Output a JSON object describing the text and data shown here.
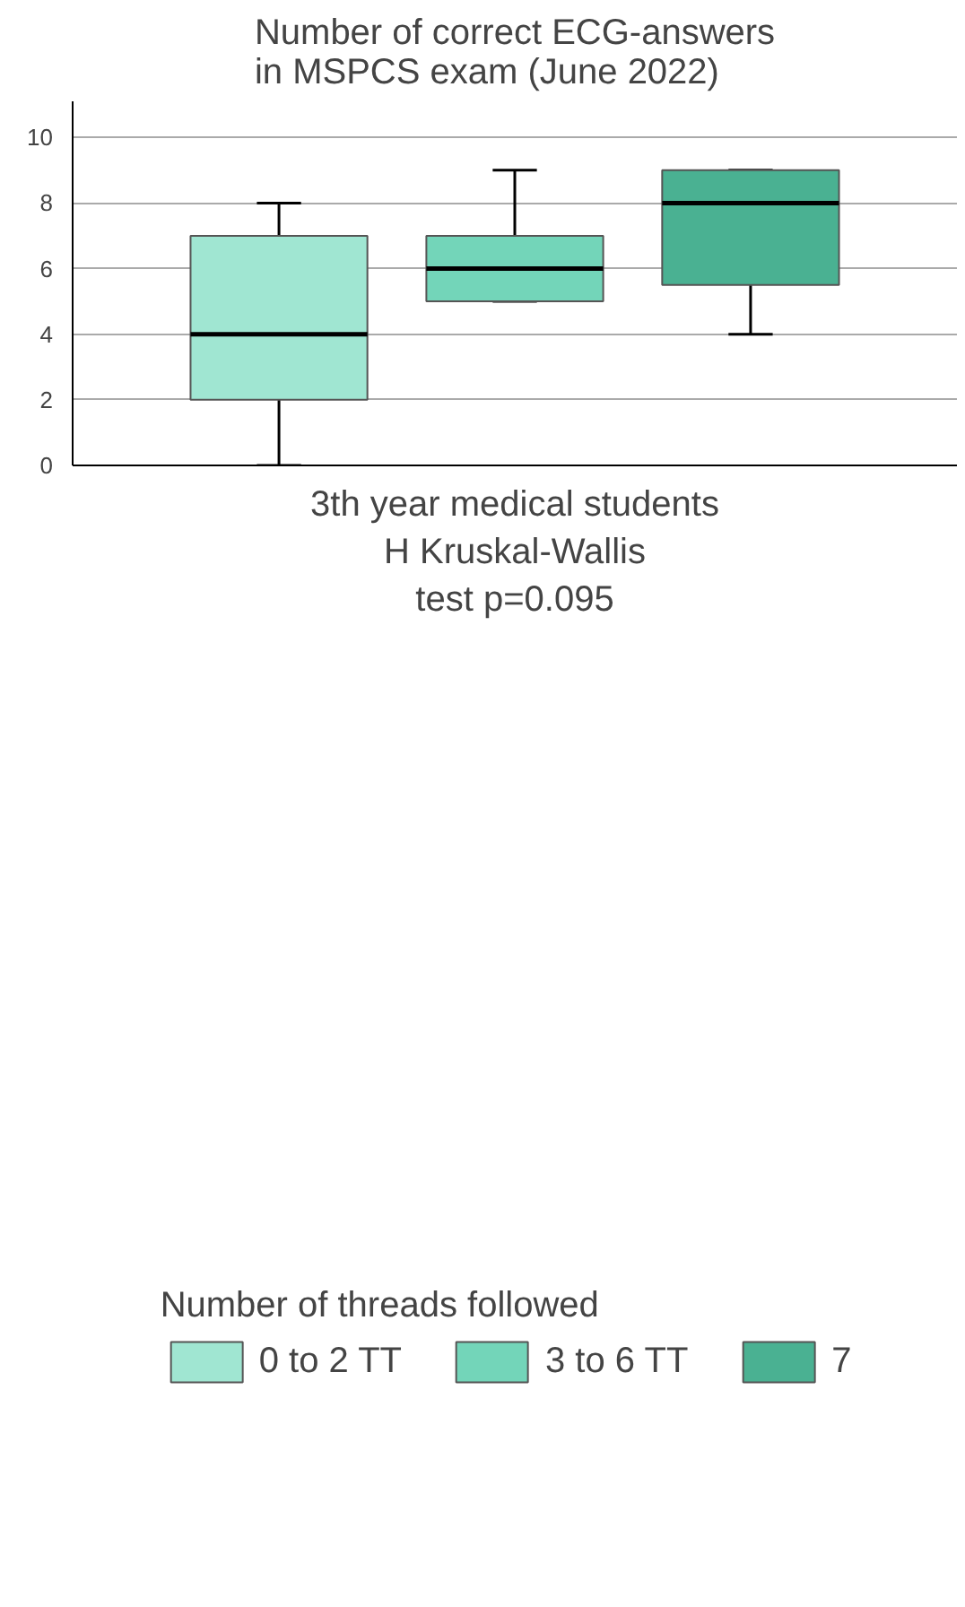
{
  "chart_data": {
    "type": "box",
    "title": "Number of correct ECG-answers\nin MSPCS exam (June 2022)",
    "xlabel": "3th year medical students\nH Kruskal-Wallis\ntest p=0.095",
    "legend_title": "Number of threads followed",
    "categories": [
      null
    ],
    "series": [
      {
        "name": "0 to 2 TT",
        "color": "#a0e6d2",
        "boxes": [
          {
            "low": 0,
            "q1": 2,
            "median": 4,
            "q3": 7,
            "high": 8
          }
        ]
      },
      {
        "name": "3 to 6 TT",
        "color": "#73d5b9",
        "boxes": [
          {
            "low": 5,
            "q1": 5,
            "median": 6,
            "q3": 7,
            "high": 9
          }
        ]
      },
      {
        "name": "7",
        "color": "#4ab192",
        "boxes": [
          {
            "low": 4,
            "q1": 5.5,
            "median": 8,
            "q3": 9,
            "high": 9
          }
        ]
      }
    ],
    "ylim": [
      0,
      11.1
    ],
    "yticks": [
      0,
      2,
      4,
      6,
      8,
      10
    ],
    "grid": "y",
    "legend": "bottom",
    "tick_labels": "y"
  }
}
